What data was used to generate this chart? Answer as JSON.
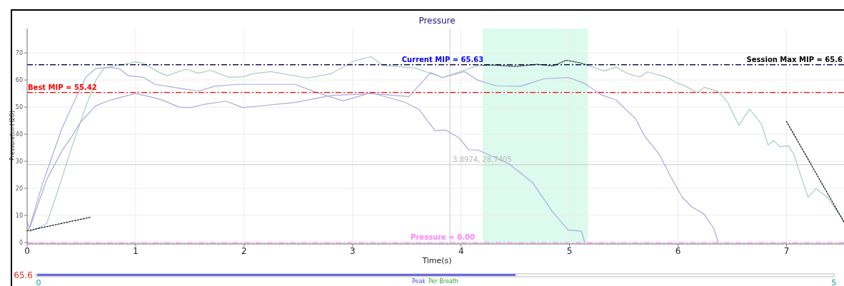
{
  "chart_data": [
    {
      "type": "line",
      "title": "Pressure",
      "xlabel": "Time(s)",
      "ylabel": "Pressure(cmH2O)",
      "xlim": [
        0,
        7.53
      ],
      "xticks": [
        0,
        1,
        2,
        3,
        4,
        5,
        6,
        7
      ],
      "ylim": [
        0,
        79
      ],
      "yticks": [
        0,
        10,
        20,
        30,
        40,
        50,
        60,
        70
      ],
      "grid": true,
      "series": [
        {
          "color": "#a8ccbc",
          "x": [
            0.02,
            0.18,
            0.27,
            0.41,
            0.54,
            0.63,
            0.71,
            0.85,
            1.0,
            1.07,
            1.2,
            1.29,
            1.46,
            1.58,
            1.69,
            1.86,
            1.99,
            2.08,
            2.25,
            2.58,
            2.8,
            3.02,
            3.17,
            3.28,
            3.57,
            3.83,
            4.16,
            4.3,
            4.5,
            4.7,
            4.85,
            4.97,
            5.1,
            5.17,
            5.32,
            5.43,
            5.54,
            5.65,
            5.72,
            5.91,
            5.98,
            6.06,
            6.18,
            6.24,
            6.37,
            6.46,
            6.56,
            6.66,
            6.77,
            6.83,
            6.88,
            6.94,
            7.02,
            7.07,
            7.14,
            7.2,
            7.27,
            7.37,
            7.53
          ],
          "values": [
            3.9,
            7,
            17.5,
            35,
            50,
            59.7,
            64.5,
            65.4,
            66.7,
            66.2,
            63.1,
            61.6,
            64,
            62.5,
            63.6,
            61,
            61.2,
            62.3,
            63.1,
            60.7,
            62.3,
            67.1,
            68.6,
            65.4,
            64.5,
            60.9,
            65.4,
            65.5,
            65,
            65.8,
            65.2,
            67.3,
            66.3,
            65.4,
            63.3,
            64.8,
            62.3,
            61.1,
            63,
            60.8,
            59.1,
            57.9,
            55.3,
            57.3,
            55.8,
            51.6,
            43.3,
            49.2,
            43.7,
            36,
            37.6,
            35.4,
            35.7,
            32.4,
            23.6,
            16.7,
            19.8,
            17,
            8
          ]
        },
        {
          "color": "#aaaadd",
          "x": [
            0.0,
            0.02,
            0.14,
            0.32,
            0.41,
            0.54,
            0.63,
            0.74,
            0.85,
            0.93,
            1.07,
            1.18,
            1.4,
            1.58,
            1.73,
            1.95,
            2.17,
            2.47,
            2.64,
            2.91,
            3.17,
            3.48,
            3.61,
            3.76,
            3.86,
            3.98,
            4.07,
            4.16,
            4.44,
            4.66,
            4.84,
            4.99,
            5.04,
            5.11,
            5.14
          ],
          "values": [
            7.6,
            5.3,
            21.5,
            42,
            50,
            61,
            64.2,
            64.6,
            64.2,
            61.6,
            61,
            58.4,
            57,
            55.9,
            57.7,
            58.4,
            58.4,
            58.4,
            55.8,
            52.3,
            55.3,
            51.8,
            49.2,
            41.3,
            41.5,
            38.7,
            34.3,
            34.1,
            29.1,
            22.1,
            11.5,
            4.5,
            4.5,
            4.1,
            0
          ]
        },
        {
          "color": "#aaaadd",
          "x": [
            0.0,
            0.03,
            0.18,
            0.32,
            0.41,
            0.49,
            0.63,
            0.74,
            0.85,
            1.0,
            1.11,
            1.24,
            1.4,
            1.51,
            1.62,
            1.83,
            1.99,
            2.16,
            2.47,
            2.8,
            3.17,
            3.52,
            3.72,
            3.83,
            4.03,
            4.16,
            4.33,
            4.55,
            4.77,
            4.99,
            5.13,
            5.3,
            5.43,
            5.61,
            5.69,
            5.83,
            5.93,
            6.04,
            6.13,
            6.24,
            6.33,
            6.37
          ],
          "values": [
            4.3,
            6,
            23.2,
            33.8,
            39,
            44.3,
            50.4,
            52.2,
            53.5,
            55,
            54,
            52.7,
            50,
            49.8,
            50.9,
            52.2,
            49.8,
            50.5,
            51.7,
            54.3,
            55,
            53.9,
            62.7,
            60.9,
            63.1,
            59.8,
            57.8,
            57.7,
            60.5,
            60.9,
            58.9,
            54.4,
            52.6,
            45.6,
            39.4,
            32.4,
            24.5,
            16.6,
            13.1,
            10.5,
            5.2,
            0
          ]
        },
        {
          "color": "#333333",
          "line_style": "dotted",
          "x": [
            4.2,
            4.3,
            4.5,
            4.7,
            4.85,
            4.97,
            5.1,
            5.17
          ],
          "values": [
            65.4,
            65.5,
            65,
            65.8,
            65.2,
            67.3,
            66.3,
            65.4
          ]
        },
        {
          "color": "#000000",
          "line_style": "dotted",
          "x": [
            0,
            0.58
          ],
          "values": [
            4.3,
            9.3
          ]
        },
        {
          "color": "#000000",
          "line_style": "dotted",
          "x": [
            7.0,
            7.53
          ],
          "values": [
            44.7,
            7.5
          ]
        }
      ],
      "ref_lines": [
        {
          "axis": "y",
          "value": 55.42,
          "label": "Best MIP = 55.42",
          "color": "#ff0000",
          "line_style": "dashdot"
        },
        {
          "axis": "y",
          "value": 65.63,
          "label": "Current MIP = 65.63",
          "color": "#0000ff",
          "line_style": "dashdot"
        },
        {
          "axis": "y",
          "value": 65.63,
          "label": "Session Max MIP = 65.6",
          "color": "#000000",
          "line_style": "dashdot"
        },
        {
          "axis": "y",
          "value": 0,
          "label": "Pressure = 0.00",
          "color": "#ff80ff",
          "line_style": "dashdot"
        },
        {
          "axis": "x",
          "value": 3.8974,
          "color": "#c8c8c8"
        },
        {
          "axis": "y",
          "value": 28.7405,
          "color": "#c8c8c8"
        }
      ],
      "bands": [
        {
          "axis": "x",
          "from": 4.2,
          "to": 5.17,
          "color": "#dcfaee"
        }
      ],
      "annotations": [
        {
          "text": "3.8974, 28.7405",
          "x": 3.8974,
          "y": 28.7405
        }
      ]
    },
    {
      "type": "other",
      "annotations": [
        "65.6",
        "0",
        "5",
        "Peak",
        "Per Breath"
      ]
    }
  ]
}
